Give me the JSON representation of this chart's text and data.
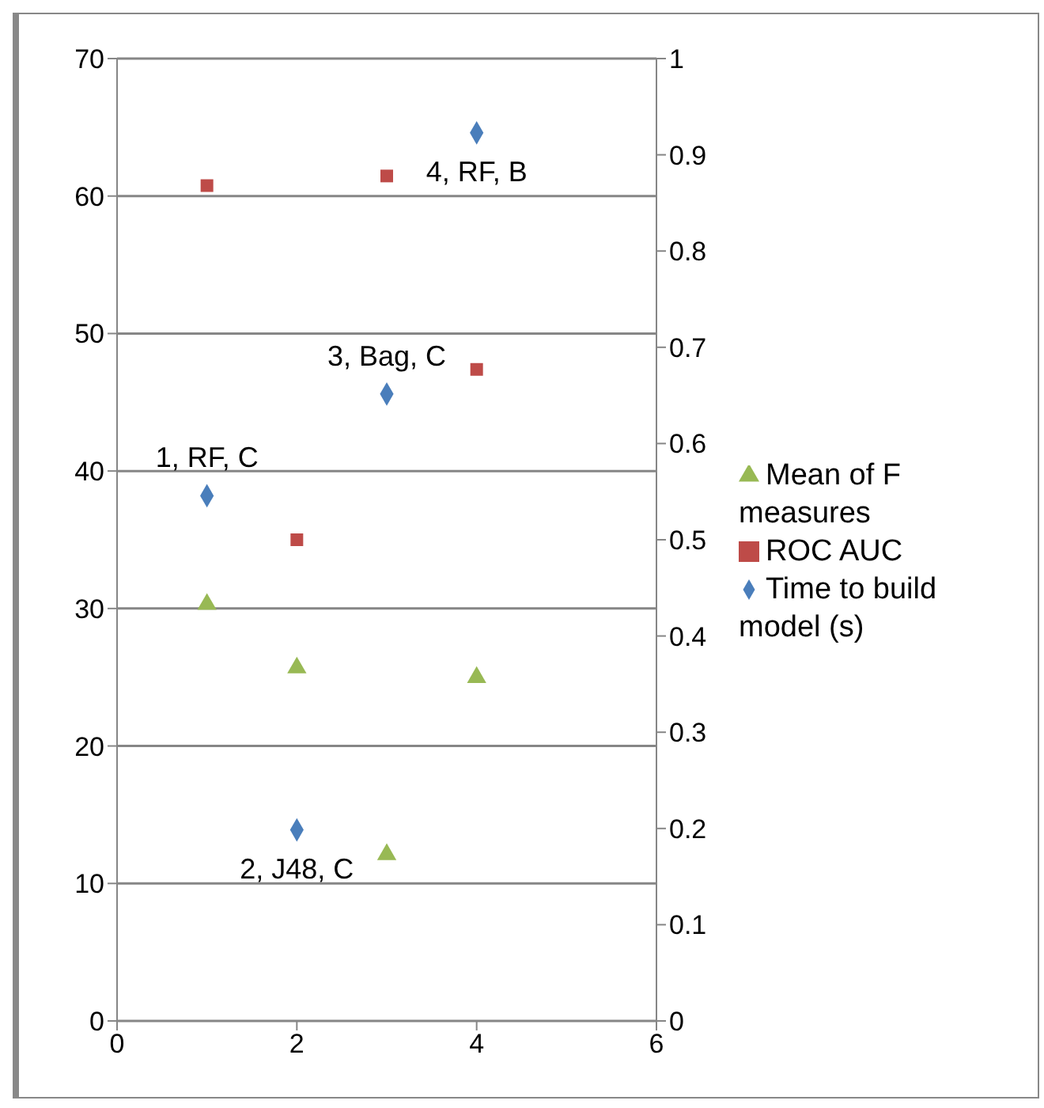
{
  "chart_data": {
    "type": "scatter",
    "xlim": [
      0,
      6
    ],
    "xticks": [
      0,
      2,
      4,
      6
    ],
    "ylim": [
      0,
      70
    ],
    "yticks": [
      0,
      10,
      20,
      30,
      40,
      50,
      60,
      70
    ],
    "y2lim": [
      0,
      1
    ],
    "y2ticks": [
      0,
      0.1,
      0.2,
      0.3,
      0.4,
      0.5,
      0.6,
      0.7,
      0.8,
      0.9,
      1
    ],
    "grid": "y",
    "legend": "right",
    "series": [
      {
        "name": "Time to build model (s)",
        "color": "#4a7ebb",
        "marker": "diamond",
        "x": [
          1,
          2,
          3,
          4
        ],
        "values": [
          38.2,
          13.9,
          45.6,
          64.6
        ]
      },
      {
        "name": "ROC AUC",
        "color": "#be4b48",
        "marker": "square",
        "axis": "y2",
        "x": [
          1,
          2,
          3,
          4
        ],
        "values": [
          0.868,
          0.5,
          0.878,
          0.677
        ]
      },
      {
        "name": "Mean of F measures",
        "color": "#98b954",
        "marker": "triangle",
        "axis": "y2",
        "x": [
          1,
          2,
          3,
          4
        ],
        "values": [
          0.433,
          0.367,
          0.173,
          0.357
        ]
      }
    ],
    "annotations": [
      {
        "text": "1, RF, C",
        "x": 1,
        "y": 38.2
      },
      {
        "text": "2, J48, C",
        "x": 2,
        "y": 13.9
      },
      {
        "text": "3, Bag, C",
        "x": 3,
        "y": 45.6
      },
      {
        "text": "4, RF, B",
        "x": 4,
        "y": 64.6
      }
    ]
  }
}
